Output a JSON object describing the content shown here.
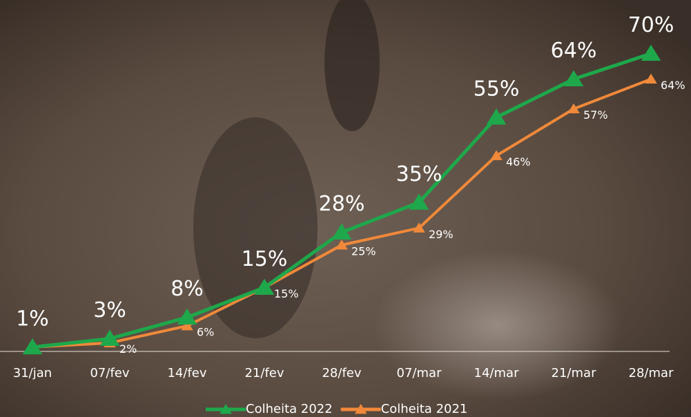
{
  "chart_data": {
    "type": "line",
    "categories": [
      "31/jan",
      "07/fev",
      "14/fev",
      "21/fev",
      "28/fev",
      "07/mar",
      "14/mar",
      "21/mar",
      "28/mar"
    ],
    "series": [
      {
        "name": "Colheita 2022",
        "color": "#1ea84b",
        "values": [
          1,
          3,
          8,
          15,
          28,
          35,
          55,
          64,
          70
        ],
        "value_labels": [
          "1%",
          "3%",
          "8%",
          "15%",
          "28%",
          "35%",
          "55%",
          "64%",
          "70%"
        ]
      },
      {
        "name": "Colheita 2021",
        "color": "#f0893a",
        "values": [
          1,
          2,
          6,
          15,
          25,
          29,
          46,
          57,
          64
        ],
        "value_labels": [
          null,
          "2%",
          "6%",
          "15%",
          "25%",
          "29%",
          "46%",
          "57%",
          "64%"
        ]
      }
    ],
    "ylim": [
      0,
      80
    ],
    "legend": "bottom"
  }
}
